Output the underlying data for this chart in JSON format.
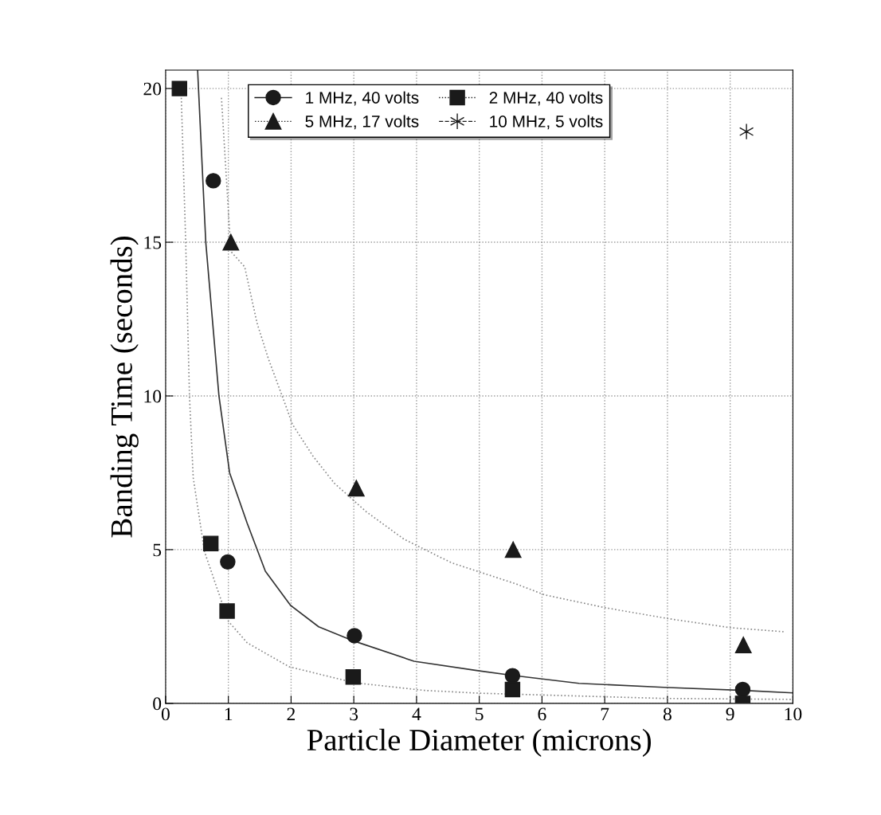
{
  "chart_data": {
    "type": "scatter",
    "xlabel": "Particle Diameter (microns)",
    "ylabel": "Banding Time (seconds)",
    "xlim": [
      0,
      10
    ],
    "ylim": [
      0,
      20.6
    ],
    "xticks": [
      0,
      1,
      2,
      3,
      4,
      5,
      6,
      7,
      8,
      9,
      10
    ],
    "yticks": [
      0,
      5,
      10,
      15,
      20
    ],
    "grid": true,
    "legend": "top",
    "series": [
      {
        "name": "1 MHz, 40 volts",
        "color": "#1a1a1a",
        "marker": "circle",
        "line_style": "solid",
        "x": [
          0.76,
          0.99,
          3.01,
          5.53,
          9.2
        ],
        "values": [
          17.0,
          4.6,
          2.2,
          0.9,
          0.45
        ]
      },
      {
        "name": "2 MHz, 40 volts",
        "color": "#1a1a1a",
        "marker": "square",
        "line_style": "dotted",
        "x": [
          0.22,
          0.72,
          0.98,
          2.99,
          5.53,
          9.2
        ],
        "values": [
          20.0,
          5.2,
          3.0,
          0.86,
          0.45,
          0.0
        ]
      },
      {
        "name": "5 MHz, 17 volts",
        "color": "#1a1a1a",
        "marker": "triangle",
        "line_style": "dotted",
        "x": [
          1.04,
          3.04,
          5.54,
          9.21
        ],
        "values": [
          15.0,
          7.0,
          5.0,
          1.9
        ]
      },
      {
        "name": "10 MHz, 5 volts",
        "color": "#1a1a1a",
        "marker": "cross",
        "line_style": "dashed",
        "x": [
          9.26
        ],
        "values": [
          18.6
        ]
      },
      {
        "type": "line",
        "color": "#333333",
        "line_style": "solid",
        "marker": "none",
        "x": [
          0.51,
          0.64,
          0.85,
          1.02,
          1.3,
          1.59,
          1.99,
          2.44,
          3.01,
          3.96,
          4.98,
          5.53,
          6.59,
          7.94,
          9.21,
          10.0
        ],
        "values": [
          20.6,
          15.0,
          10.0,
          7.5,
          5.86,
          4.3,
          3.19,
          2.49,
          2.02,
          1.37,
          1.06,
          0.91,
          0.65,
          0.52,
          0.42,
          0.34
        ]
      },
      {
        "type": "line",
        "color": "#888888",
        "line_style": "dotted",
        "marker": "none",
        "x": [
          0.25,
          0.32,
          0.38,
          0.44,
          0.62,
          1.0,
          1.3,
          1.97,
          3.01,
          4.13,
          5.0,
          7.94,
          9.97
        ],
        "values": [
          19.7,
          15.0,
          10.0,
          7.34,
          4.93,
          2.67,
          1.97,
          1.19,
          0.67,
          0.42,
          0.33,
          0.16,
          0.13
        ]
      },
      {
        "type": "line",
        "color": "#888888",
        "line_style": "dotted",
        "marker": "none",
        "x": [
          0.89,
          1.04,
          1.26,
          1.46,
          1.64,
          1.93,
          2.02,
          2.35,
          2.69,
          3.2,
          3.8,
          4.56,
          5.58,
          6.04,
          7.01,
          8.03,
          9.01,
          9.85
        ],
        "values": [
          19.7,
          14.7,
          14.2,
          12.35,
          11.2,
          9.6,
          9.08,
          8.04,
          7.16,
          6.23,
          5.34,
          4.57,
          3.89,
          3.53,
          3.11,
          2.75,
          2.46,
          2.33
        ]
      }
    ]
  }
}
